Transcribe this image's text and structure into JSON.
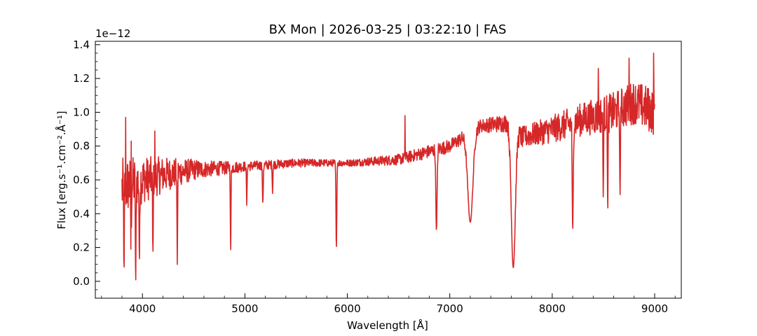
{
  "chart_data": {
    "type": "line",
    "title": "BX Mon | 2026-03-25 | 03:22:10 | FAS",
    "xlabel": "Wavelength [Å]",
    "ylabel": "Flux [erg.s⁻¹.cm⁻².Å⁻¹]",
    "y_exponent_label": "1e−12",
    "y_scale": 1e-12,
    "xlim": [
      3540,
      9260
    ],
    "ylim": [
      -0.1,
      1.42
    ],
    "x_ticks": [
      4000,
      5000,
      6000,
      7000,
      8000,
      9000
    ],
    "x_tick_labels": [
      "4000",
      "5000",
      "6000",
      "7000",
      "8000",
      "9000"
    ],
    "y_ticks": [
      0.0,
      0.2,
      0.4,
      0.6,
      0.8,
      1.0,
      1.2,
      1.4
    ],
    "y_tick_labels": [
      "0.0",
      "0.2",
      "0.4",
      "0.6",
      "0.8",
      "1.0",
      "1.2",
      "1.4"
    ],
    "grid": false,
    "ticks_direction": "in",
    "minor_ticks": true,
    "series": [
      {
        "color": "#d62728",
        "continuum": [
          [
            3800,
            0.55
          ],
          [
            3900,
            0.58
          ],
          [
            4000,
            0.6
          ],
          [
            4200,
            0.63
          ],
          [
            4500,
            0.66
          ],
          [
            4800,
            0.67
          ],
          [
            5000,
            0.68
          ],
          [
            5500,
            0.7
          ],
          [
            6000,
            0.7
          ],
          [
            6500,
            0.72
          ],
          [
            7000,
            0.8
          ],
          [
            7300,
            0.92
          ],
          [
            7600,
            0.94
          ],
          [
            7700,
            0.85
          ],
          [
            8000,
            0.9
          ],
          [
            8300,
            0.96
          ],
          [
            8600,
            1.0
          ],
          [
            8800,
            1.06
          ],
          [
            9000,
            1.0
          ]
        ],
        "noise": [
          [
            3800,
            0.18
          ],
          [
            4000,
            0.14
          ],
          [
            4300,
            0.09
          ],
          [
            4600,
            0.05
          ],
          [
            5000,
            0.03
          ],
          [
            6000,
            0.02
          ],
          [
            6800,
            0.04
          ],
          [
            7300,
            0.04
          ],
          [
            7800,
            0.07
          ],
          [
            8300,
            0.1
          ],
          [
            8800,
            0.13
          ],
          [
            9000,
            0.14
          ]
        ],
        "absorption_lines": [
          [
            3820,
            0.05,
            3
          ],
          [
            3889,
            0.1,
            3
          ],
          [
            3934,
            -0.03,
            3
          ],
          [
            3970,
            0.1,
            3
          ],
          [
            4102,
            0.15,
            3
          ],
          [
            4340,
            0.1,
            3
          ],
          [
            4861,
            0.16,
            3
          ],
          [
            5018,
            0.45,
            3
          ],
          [
            5175,
            0.46,
            4
          ],
          [
            5270,
            0.52,
            3
          ],
          [
            5893,
            0.19,
            4
          ],
          [
            6870,
            0.3,
            6
          ],
          [
            7200,
            0.35,
            25
          ],
          [
            7620,
            0.08,
            20
          ],
          [
            8200,
            0.3,
            5
          ],
          [
            8498,
            0.5,
            3
          ],
          [
            8542,
            0.4,
            3
          ],
          [
            8662,
            0.48,
            3
          ]
        ],
        "emission_lines": [
          [
            3835,
            0.97
          ],
          [
            3890,
            0.83
          ],
          [
            4120,
            0.89
          ],
          [
            6563,
            0.98
          ],
          [
            8450,
            1.26
          ],
          [
            8750,
            1.32
          ],
          [
            8990,
            1.35
          ]
        ]
      }
    ]
  }
}
